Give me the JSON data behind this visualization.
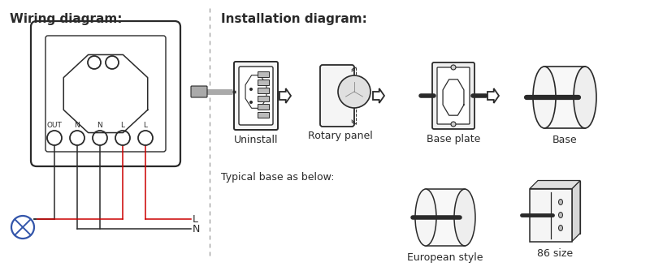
{
  "bg_color": "#ffffff",
  "title_wiring": "Wiring diagram:",
  "title_installation": "Installation diagram:",
  "title_typical": "Typical base as below:",
  "labels_install": [
    "Uninstall",
    "Rotary panel",
    "Base plate",
    "Base"
  ],
  "labels_typical": [
    "European style",
    "86 size"
  ],
  "wire_labels": [
    "OUT",
    "N",
    "N",
    "L",
    "L"
  ],
  "line_color": "#2a2a2a",
  "red_color": "#cc0000",
  "blue_color": "#3355aa",
  "dashed_color": "#999999",
  "gray_color": "#888888",
  "light_gray": "#e8e8e8",
  "title_fontsize": 11,
  "label_fontsize": 9,
  "wire_label_fontsize": 6.5
}
